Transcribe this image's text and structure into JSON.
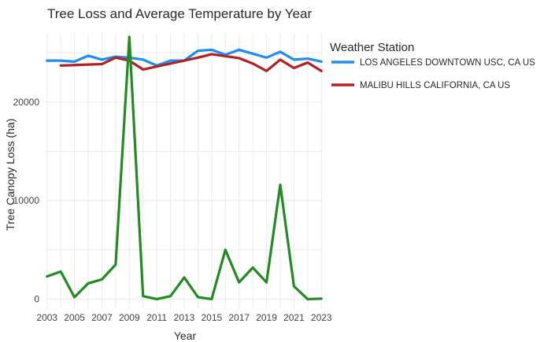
{
  "chart_data": {
    "type": "line",
    "title": "Tree Loss and Average Temperature by Year",
    "xlabel": "Year",
    "ylabel": "Tree Canopy Loss (ha)",
    "x_ticks": [
      2003,
      2005,
      2007,
      2009,
      2011,
      2013,
      2015,
      2017,
      2019,
      2021,
      2023
    ],
    "y_ticks": [
      0,
      10000,
      20000
    ],
    "y_tick_labels": [
      "0",
      "10000",
      "20000"
    ],
    "xlim": [
      2002.9,
      2023.1
    ],
    "ylim": [
      -1000,
      27000
    ],
    "grid": true,
    "legend": {
      "title": "Weather Station",
      "placement": "right"
    },
    "series": [
      {
        "name": "LOS ANGELES DOWNTOWN USC, CA US",
        "color": "#1f8ef1",
        "in_legend": true,
        "x": [
          2003,
          2004,
          2005,
          2006,
          2007,
          2008,
          2009,
          2010,
          2011,
          2012,
          2013,
          2014,
          2015,
          2016,
          2017,
          2018,
          2019,
          2020,
          2021,
          2022,
          2023
        ],
        "y": [
          24200,
          24200,
          24100,
          24700,
          24300,
          24600,
          24500,
          24300,
          23700,
          24200,
          24200,
          25200,
          25300,
          24800,
          25300,
          24900,
          24500,
          25100,
          24300,
          24400,
          24100
        ]
      },
      {
        "name": "MALIBU HILLS CALIFORNIA, CA US",
        "color": "#b22222",
        "in_legend": true,
        "x": [
          2004,
          2005,
          2006,
          2007,
          2008,
          2009,
          2010,
          2011,
          2012,
          2013,
          2014,
          2015,
          2016,
          2017,
          2018,
          2019,
          2020,
          2021,
          2022,
          2023
        ],
        "y": [
          23700,
          23750,
          23800,
          23850,
          24500,
          24200,
          23300,
          23600,
          23900,
          24200,
          24500,
          24850,
          24650,
          24450,
          23900,
          23150,
          24300,
          23450,
          24000,
          23150
        ]
      },
      {
        "color": "#228b22",
        "in_legend": false,
        "x": [
          2003,
          2004,
          2005,
          2006,
          2007,
          2008,
          2009,
          2010,
          2011,
          2012,
          2013,
          2014,
          2015,
          2016,
          2017,
          2018,
          2019,
          2020,
          2021,
          2022,
          2023
        ],
        "y": [
          2300,
          2800,
          200,
          1600,
          2000,
          3500,
          26600,
          300,
          0,
          300,
          2200,
          200,
          0,
          5000,
          1700,
          3200,
          1700,
          11600,
          1300,
          0,
          50
        ]
      }
    ]
  }
}
